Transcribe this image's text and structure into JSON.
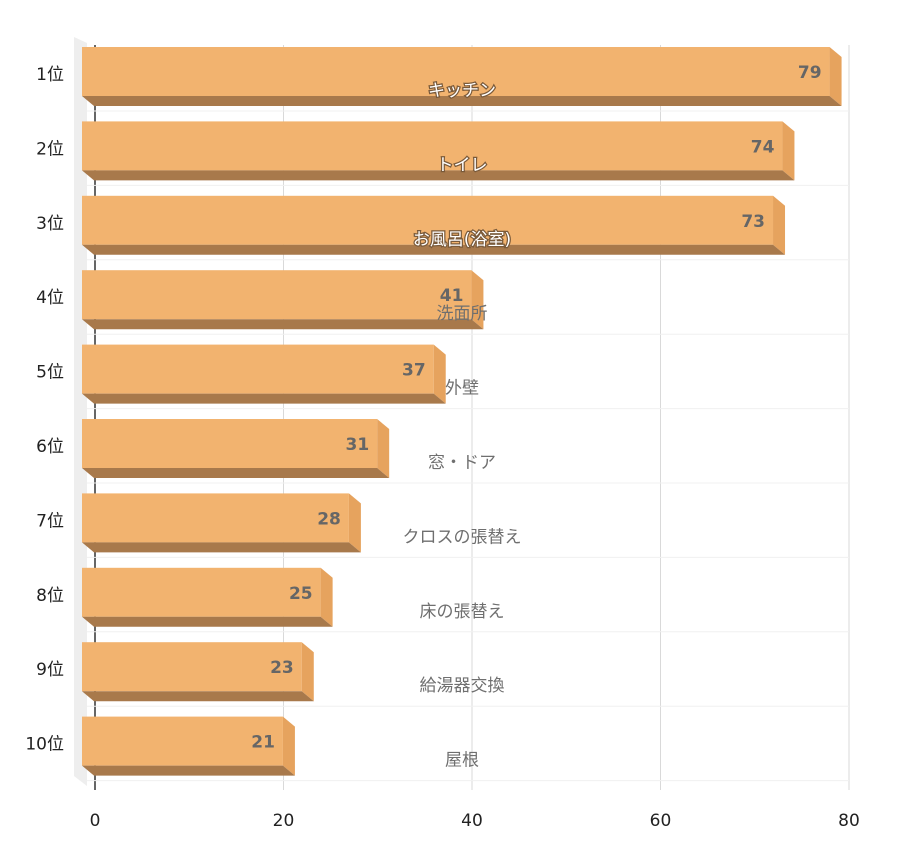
{
  "chart_data": {
    "type": "bar",
    "orientation": "horizontal",
    "style": "3d",
    "rank_labels": [
      "1位",
      "2位",
      "3位",
      "4位",
      "5位",
      "6位",
      "7位",
      "8位",
      "9位",
      "10位"
    ],
    "categories": [
      "キッチン",
      "トイレ",
      "お風呂(浴室)",
      "洗面所",
      "外壁",
      "窓・ドア",
      "クロスの張替え",
      "床の張替え",
      "給湯器交換",
      "屋根"
    ],
    "values": [
      79,
      74,
      73,
      41,
      37,
      31,
      28,
      25,
      23,
      21
    ],
    "xlim": [
      0,
      80
    ],
    "xticks": [
      0,
      20,
      40,
      60,
      80
    ],
    "grid": true,
    "colors": {
      "bar_front": "#f2b36f",
      "bar_top": "#f7c98e",
      "bar_bottom": "#a8794b",
      "bar_side": "#e6a35e"
    }
  }
}
